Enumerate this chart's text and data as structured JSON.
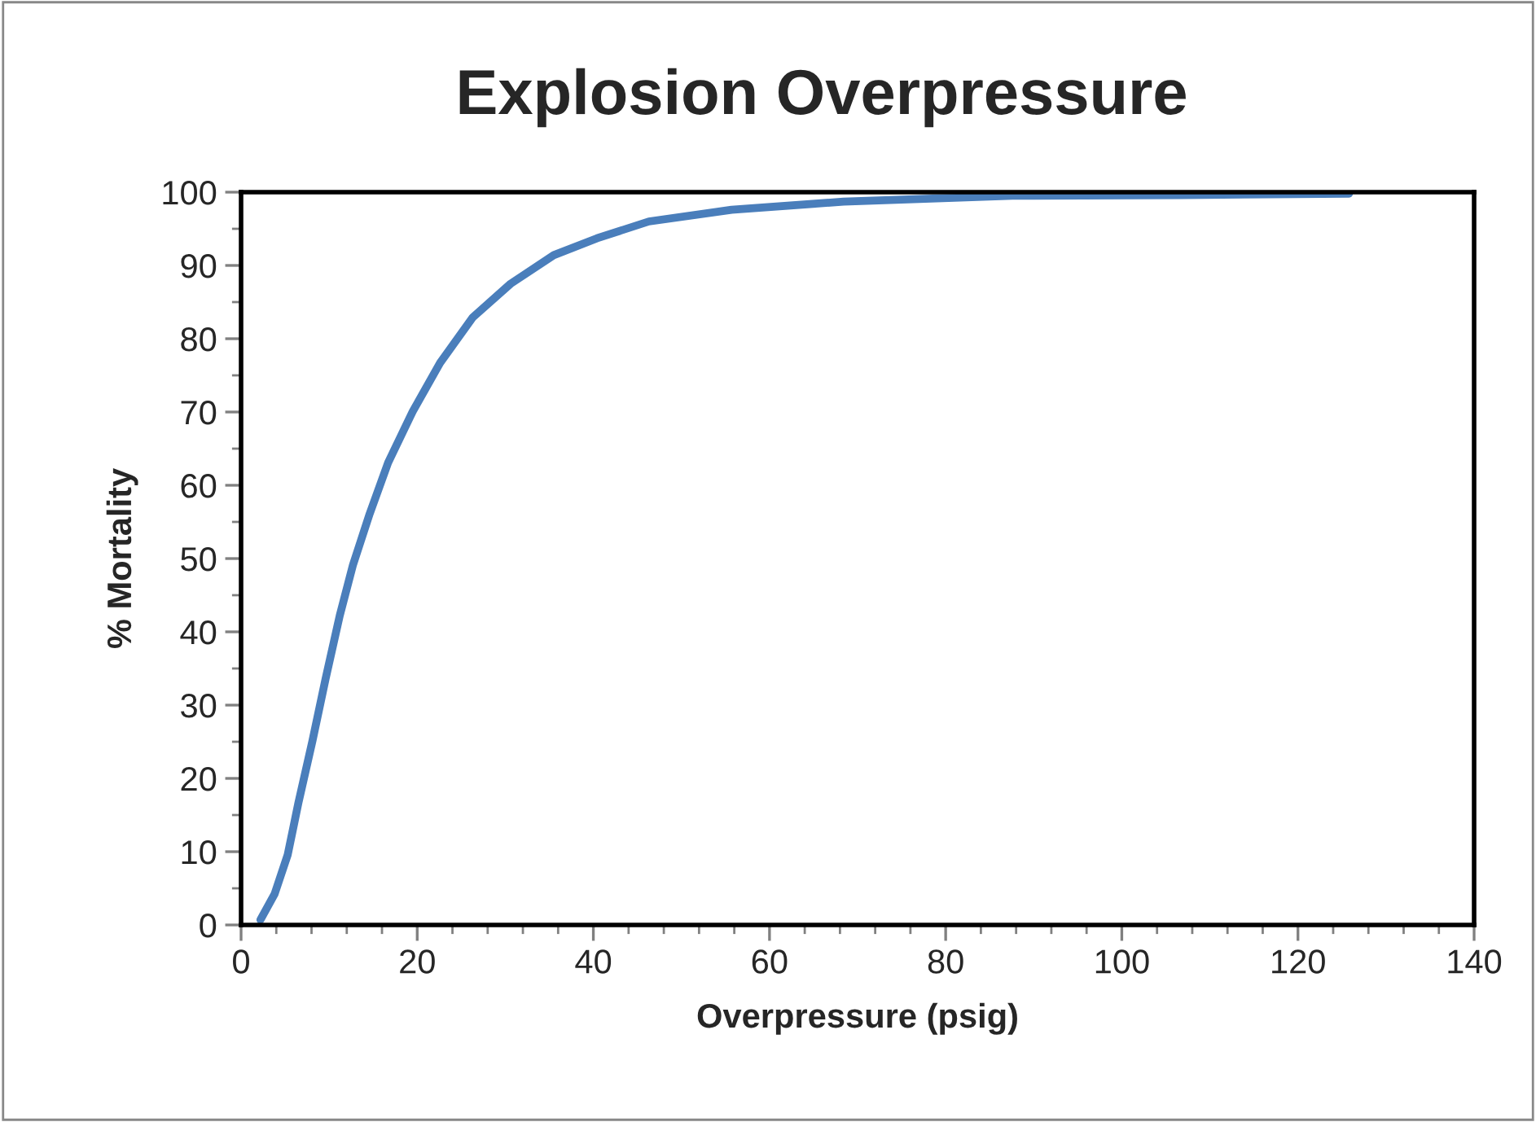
{
  "chart_data": {
    "type": "line",
    "title": "Explosion Overpressure",
    "xlabel": "Overpressure (psig)",
    "ylabel": "% Mortality",
    "series": [
      {
        "color": "#4a7ebb",
        "x": [
          2.2,
          3.8,
          5.3,
          6.5,
          8.1,
          9.6,
          11.2,
          12.7,
          14.6,
          16.7,
          19.5,
          22.6,
          26.3,
          30.6,
          35.5,
          40.4,
          46.3,
          55.7,
          68.4,
          87.6,
          106.7,
          125.8
        ],
        "values": [
          0.7,
          4.2,
          9.6,
          16.6,
          25.1,
          33.6,
          42.2,
          49.1,
          56.1,
          63.1,
          70.1,
          76.7,
          82.9,
          87.5,
          91.4,
          93.7,
          96.0,
          97.6,
          98.7,
          99.5,
          99.6,
          99.8
        ]
      }
    ],
    "xlim": [
      0,
      140
    ],
    "xticks": [
      0,
      20,
      40,
      60,
      80,
      100,
      120,
      140
    ],
    "ylim": [
      0,
      100
    ],
    "yticks": [
      0,
      10,
      20,
      30,
      40,
      50,
      60,
      70,
      80,
      90,
      100
    ],
    "grid": false,
    "legend": false,
    "marker": "none",
    "line_style": "solid"
  }
}
